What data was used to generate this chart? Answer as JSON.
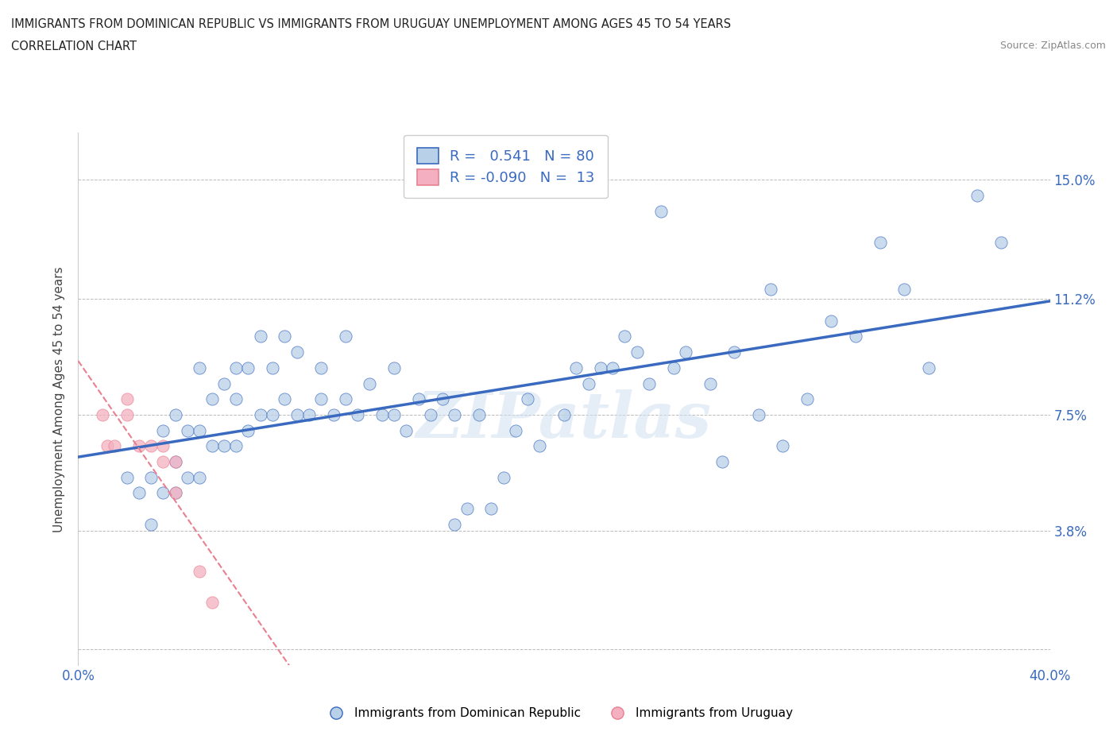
{
  "title_line1": "IMMIGRANTS FROM DOMINICAN REPUBLIC VS IMMIGRANTS FROM URUGUAY UNEMPLOYMENT AMONG AGES 45 TO 54 YEARS",
  "title_line2": "CORRELATION CHART",
  "source_text": "Source: ZipAtlas.com",
  "ylabel": "Unemployment Among Ages 45 to 54 years",
  "xlim": [
    0.0,
    0.4
  ],
  "ylim": [
    -0.005,
    0.165
  ],
  "ytick_values": [
    0.0,
    0.038,
    0.075,
    0.112,
    0.15
  ],
  "ytick_labels": [
    "",
    "3.8%",
    "7.5%",
    "11.2%",
    "15.0%"
  ],
  "blue_color": "#b8d0e8",
  "pink_color": "#f4b0c0",
  "blue_line_color": "#3a6abf",
  "pink_line_color": "#e88090",
  "watermark": "ZIPatlas",
  "legend_R_blue": "0.541",
  "legend_N_blue": "80",
  "legend_R_pink": "-0.090",
  "legend_N_pink": "13",
  "blue_scatter_x": [
    0.02,
    0.025,
    0.03,
    0.03,
    0.035,
    0.035,
    0.04,
    0.04,
    0.04,
    0.045,
    0.045,
    0.05,
    0.05,
    0.05,
    0.055,
    0.055,
    0.06,
    0.06,
    0.065,
    0.065,
    0.065,
    0.07,
    0.07,
    0.075,
    0.075,
    0.08,
    0.08,
    0.085,
    0.085,
    0.09,
    0.09,
    0.095,
    0.1,
    0.1,
    0.105,
    0.11,
    0.11,
    0.115,
    0.12,
    0.125,
    0.13,
    0.13,
    0.135,
    0.14,
    0.145,
    0.15,
    0.155,
    0.155,
    0.16,
    0.165,
    0.17,
    0.175,
    0.18,
    0.185,
    0.19,
    0.2,
    0.205,
    0.21,
    0.215,
    0.22,
    0.225,
    0.23,
    0.235,
    0.24,
    0.245,
    0.25,
    0.26,
    0.265,
    0.27,
    0.28,
    0.285,
    0.29,
    0.3,
    0.31,
    0.32,
    0.33,
    0.34,
    0.35,
    0.37,
    0.38
  ],
  "blue_scatter_y": [
    0.055,
    0.05,
    0.04,
    0.055,
    0.05,
    0.07,
    0.05,
    0.06,
    0.075,
    0.055,
    0.07,
    0.055,
    0.07,
    0.09,
    0.065,
    0.08,
    0.065,
    0.085,
    0.065,
    0.08,
    0.09,
    0.07,
    0.09,
    0.075,
    0.1,
    0.075,
    0.09,
    0.08,
    0.1,
    0.075,
    0.095,
    0.075,
    0.08,
    0.09,
    0.075,
    0.08,
    0.1,
    0.075,
    0.085,
    0.075,
    0.075,
    0.09,
    0.07,
    0.08,
    0.075,
    0.08,
    0.04,
    0.075,
    0.045,
    0.075,
    0.045,
    0.055,
    0.07,
    0.08,
    0.065,
    0.075,
    0.09,
    0.085,
    0.09,
    0.09,
    0.1,
    0.095,
    0.085,
    0.14,
    0.09,
    0.095,
    0.085,
    0.06,
    0.095,
    0.075,
    0.115,
    0.065,
    0.08,
    0.105,
    0.1,
    0.13,
    0.115,
    0.09,
    0.145,
    0.13
  ],
  "pink_scatter_x": [
    0.01,
    0.012,
    0.015,
    0.02,
    0.02,
    0.025,
    0.03,
    0.035,
    0.035,
    0.04,
    0.04,
    0.05,
    0.055
  ],
  "pink_scatter_y": [
    0.075,
    0.065,
    0.065,
    0.08,
    0.075,
    0.065,
    0.065,
    0.06,
    0.065,
    0.05,
    0.06,
    0.025,
    0.015
  ]
}
